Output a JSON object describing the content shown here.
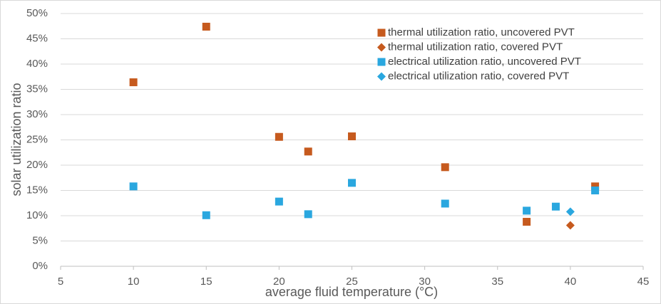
{
  "chart_data": {
    "type": "scatter",
    "x_label": "average fluid temperature (°C)",
    "y_label": "solar utilization ratio",
    "xlim": [
      5,
      45
    ],
    "xticks": [
      5,
      10,
      15,
      20,
      25,
      30,
      35,
      40,
      45
    ],
    "ylim": [
      0,
      50
    ],
    "yticks": [
      {
        "value": 0,
        "label": "0%"
      },
      {
        "value": 5,
        "label": "5%"
      },
      {
        "value": 10,
        "label": "10%"
      },
      {
        "value": 15,
        "label": "15%"
      },
      {
        "value": 20,
        "label": "20%"
      },
      {
        "value": 25,
        "label": "25%"
      },
      {
        "value": 30,
        "label": "30%"
      },
      {
        "value": 35,
        "label": "35%"
      },
      {
        "value": 40,
        "label": "40%"
      },
      {
        "value": 45,
        "label": "45%"
      },
      {
        "value": 50,
        "label": "50%"
      }
    ],
    "grid": true,
    "legend": "top-right",
    "series": [
      {
        "name": "thermal utilization ratio, uncovered PVT",
        "color": "#c65a1e",
        "marker": "square",
        "x": [
          10,
          15,
          20,
          22,
          25,
          31.4,
          37,
          41.7
        ],
        "y": [
          36.4,
          47.4,
          25.6,
          22.7,
          25.7,
          19.6,
          8.8,
          15.8
        ]
      },
      {
        "name": "thermal utilization ratio, covered PVT",
        "color": "#c65a1e",
        "marker": "diamond",
        "x": [
          40
        ],
        "y": [
          8.1
        ]
      },
      {
        "name": "electrical utilization ratio, uncovered PVT",
        "color": "#2aa7df",
        "marker": "square",
        "x": [
          10,
          15,
          20,
          22,
          25,
          31.4,
          37,
          39,
          41.7
        ],
        "y": [
          15.8,
          10.1,
          12.8,
          10.3,
          16.5,
          12.4,
          11,
          11.8,
          15
        ]
      },
      {
        "name": "electrical utilization ratio, covered PVT",
        "color": "#2aa7df",
        "marker": "diamond",
        "x": [
          40
        ],
        "y": [
          10.8
        ]
      }
    ]
  }
}
